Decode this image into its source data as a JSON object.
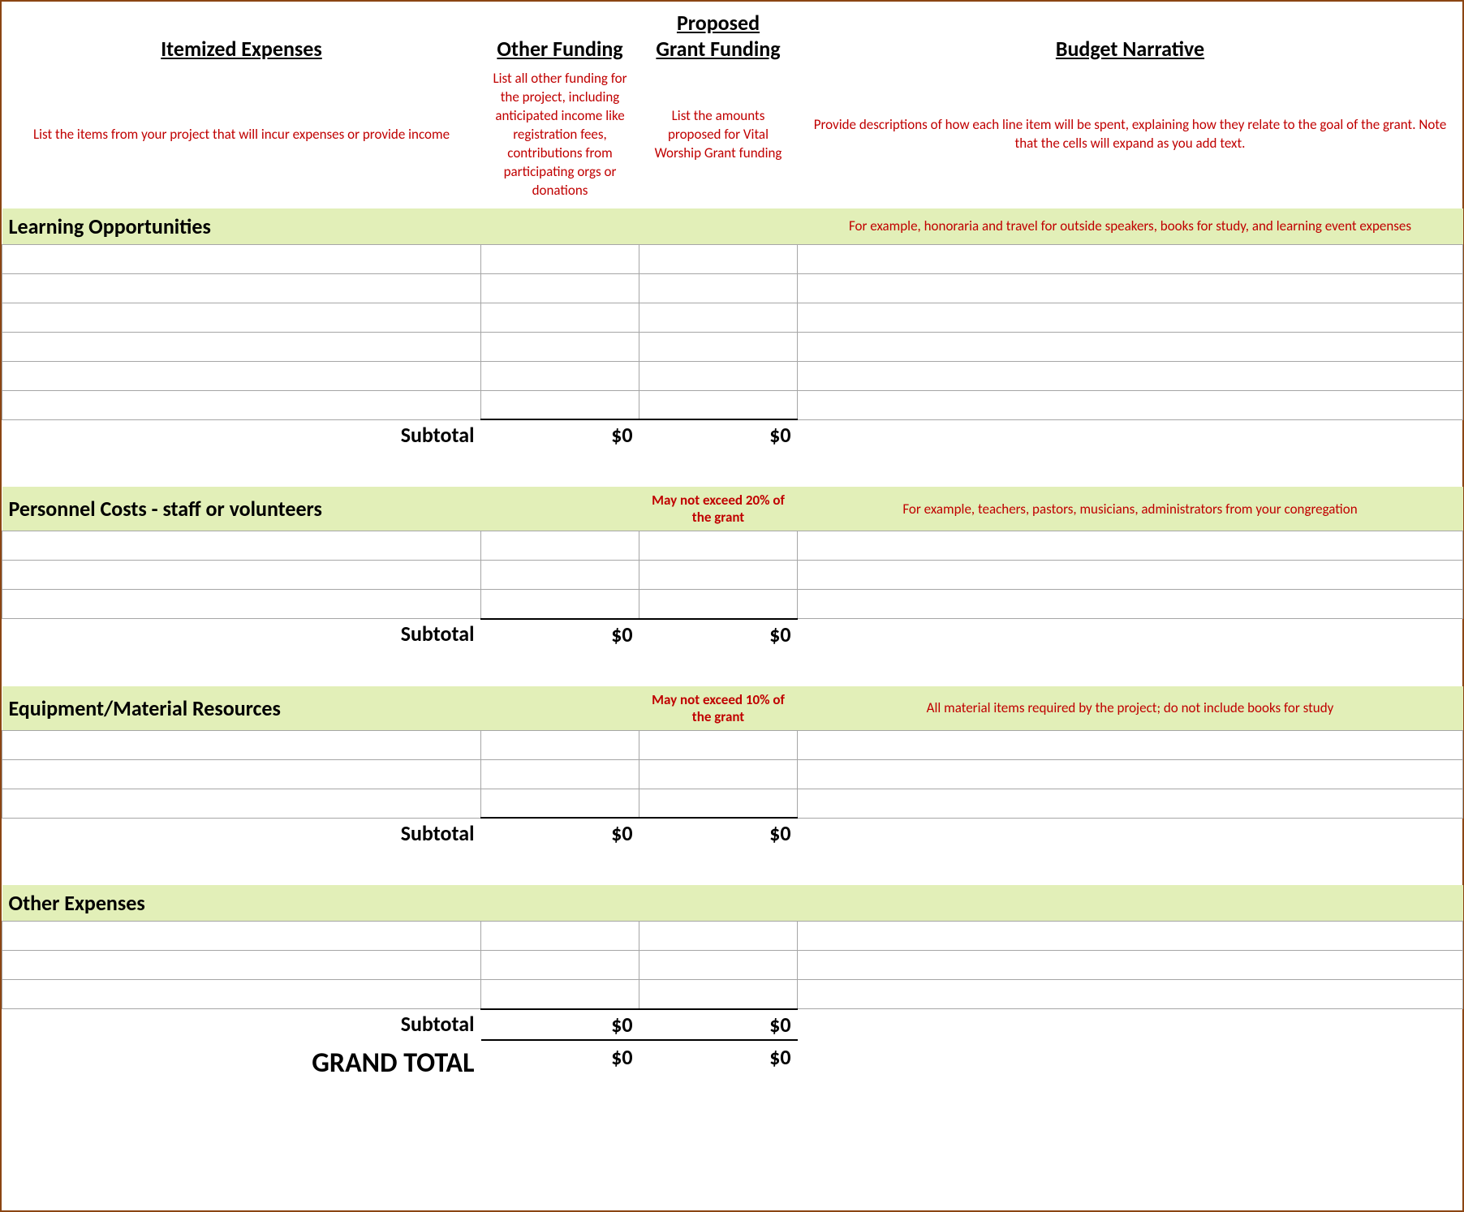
{
  "colors": {
    "border_outer": "#8b4513",
    "section_bg": "#e2efb8",
    "cell_border": "#a6a6a6",
    "subtotal_border": "#000000",
    "desc_text": "#c00000",
    "text": "#000000",
    "background": "#ffffff"
  },
  "columns": {
    "itemized": {
      "header": "Itemized Expenses",
      "desc": "List the items from your project that will incur expenses or provide income"
    },
    "other_funding": {
      "header": "Other Funding",
      "desc": "List all other funding for the project, including anticipated income like registration fees, contributions from participating orgs or donations"
    },
    "grant_funding": {
      "header_line1": "Proposed",
      "header_line2": "Grant Funding",
      "desc": "List the amounts proposed for Vital Worship Grant funding"
    },
    "narrative": {
      "header": "Budget Narrative",
      "desc": "Provide descriptions of how each line item will be spent, explaining how they relate to the goal of the grant.  Note that the cells will expand as you add text."
    }
  },
  "sections": [
    {
      "id": "learning",
      "title": "Learning Opportunities",
      "note": "",
      "example": "For example, honoraria and travel for outside speakers, books for study, and learning event expenses",
      "row_count": 6,
      "subtotal_label": "Subtotal",
      "subtotal_other": "$0",
      "subtotal_grant": "$0"
    },
    {
      "id": "personnel",
      "title": "Personnel Costs - staff or volunteers",
      "note": "May not exceed 20% of the grant",
      "example": "For example, teachers, pastors, musicians, administrators from your congregation",
      "row_count": 3,
      "subtotal_label": "Subtotal",
      "subtotal_other": "$0",
      "subtotal_grant": "$0"
    },
    {
      "id": "equipment",
      "title": "Equipment/Material Resources",
      "note": "May not exceed 10% of the grant",
      "example": "All material items required by the project; do not include books for study",
      "row_count": 3,
      "subtotal_label": "Subtotal",
      "subtotal_other": "$0",
      "subtotal_grant": "$0"
    },
    {
      "id": "other",
      "title": "Other Expenses",
      "note": "",
      "example": "",
      "row_count": 3,
      "subtotal_label": "Subtotal",
      "subtotal_other": "$0",
      "subtotal_grant": "$0"
    }
  ],
  "grand_total": {
    "label": "GRAND TOTAL",
    "other": "$0",
    "grant": "$0"
  }
}
